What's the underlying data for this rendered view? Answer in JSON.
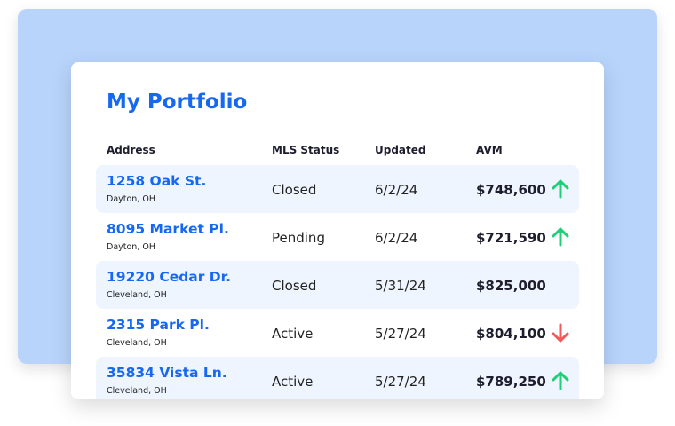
{
  "title": "My Portfolio",
  "columns": [
    "Address",
    "MLS Status",
    "Updated",
    "AVM"
  ],
  "colors": {
    "accent": "#1768f0",
    "up": "#1fcf78",
    "down": "#ef5a5a"
  },
  "rows": [
    {
      "address": "1258 Oak St.",
      "city": "Dayton, OH",
      "status": "Closed",
      "updated": "6/2/24",
      "avm": "$748,600",
      "trend": "up"
    },
    {
      "address": "8095 Market Pl.",
      "city": "Dayton, OH",
      "status": "Pending",
      "updated": "6/2/24",
      "avm": "$721,590",
      "trend": "up"
    },
    {
      "address": "19220 Cedar Dr.",
      "city": "Cleveland, OH",
      "status": "Closed",
      "updated": "5/31/24",
      "avm": "$825,000",
      "trend": "none"
    },
    {
      "address": "2315 Park Pl.",
      "city": "Cleveland, OH",
      "status": "Active",
      "updated": "5/27/24",
      "avm": "$804,100",
      "trend": "down"
    },
    {
      "address": "35834 Vista Ln.",
      "city": "Cleveland, OH",
      "status": "Active",
      "updated": "5/27/24",
      "avm": "$789,250",
      "trend": "up"
    }
  ]
}
